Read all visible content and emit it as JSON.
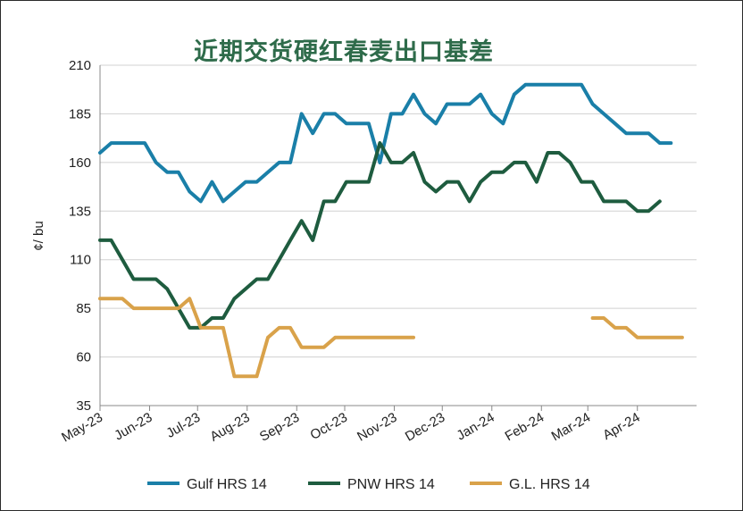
{
  "chart_data": {
    "type": "line",
    "title": "近期交货硬红春麦出口基差",
    "ylabel": "¢/ bu",
    "xlabel": "",
    "ylim": [
      35,
      210
    ],
    "yticks": [
      35,
      60,
      85,
      110,
      135,
      160,
      185,
      210
    ],
    "grid": true,
    "legend": "bottom",
    "month_labels": [
      "May-23",
      "Jun-23",
      "Jul-23",
      "Aug-23",
      "Sep-23",
      "Oct-23",
      "Nov-23",
      "Dec-23",
      "Jan-24",
      "Feb-24",
      "Mar-24",
      "Apr-24"
    ],
    "x_weeks": [
      "2023-05-01",
      "2023-05-08",
      "2023-05-15",
      "2023-05-22",
      "2023-05-29",
      "2023-06-05",
      "2023-06-12",
      "2023-06-19",
      "2023-06-26",
      "2023-07-03",
      "2023-07-10",
      "2023-07-17",
      "2023-07-24",
      "2023-07-31",
      "2023-08-07",
      "2023-08-14",
      "2023-08-21",
      "2023-08-28",
      "2023-09-04",
      "2023-09-11",
      "2023-09-18",
      "2023-09-25",
      "2023-10-02",
      "2023-10-09",
      "2023-10-16",
      "2023-10-23",
      "2023-10-30",
      "2023-11-06",
      "2023-11-13",
      "2023-11-20",
      "2023-11-27",
      "2023-12-04",
      "2023-12-11",
      "2023-12-18",
      "2023-12-25",
      "2024-01-01",
      "2024-01-08",
      "2024-01-15",
      "2024-01-22",
      "2024-01-29",
      "2024-02-05",
      "2024-02-12",
      "2024-02-19",
      "2024-02-26",
      "2024-03-04",
      "2024-03-11",
      "2024-03-18",
      "2024-03-25",
      "2024-04-01",
      "2024-04-08",
      "2024-04-15",
      "2024-04-22",
      "2024-04-29",
      "2024-05-06"
    ],
    "series": [
      {
        "name": "Gulf HRS 14",
        "color": "#1a7fa8",
        "values": [
          165,
          170,
          170,
          170,
          170,
          160,
          155,
          155,
          145,
          140,
          150,
          140,
          145,
          150,
          150,
          155,
          160,
          160,
          185,
          175,
          185,
          185,
          180,
          180,
          180,
          160,
          185,
          185,
          195,
          185,
          180,
          190,
          190,
          190,
          195,
          185,
          180,
          195,
          200,
          200,
          200,
          200,
          200,
          200,
          190,
          185,
          180,
          175,
          175,
          175,
          170,
          170,
          null,
          null
        ]
      },
      {
        "name": "PNW HRS 14",
        "color": "#1e5c3f",
        "values": [
          120,
          120,
          110,
          100,
          100,
          100,
          95,
          85,
          75,
          75,
          80,
          80,
          90,
          95,
          100,
          100,
          110,
          120,
          130,
          120,
          140,
          140,
          150,
          150,
          150,
          170,
          160,
          160,
          165,
          150,
          145,
          150,
          150,
          140,
          150,
          155,
          155,
          160,
          160,
          150,
          165,
          165,
          160,
          150,
          150,
          140,
          140,
          140,
          135,
          135,
          140,
          null,
          null,
          null
        ]
      },
      {
        "name": "G.L. HRS 14",
        "color": "#d9a24a",
        "values": [
          90,
          90,
          90,
          85,
          85,
          85,
          85,
          85,
          90,
          75,
          75,
          75,
          50,
          50,
          50,
          70,
          75,
          75,
          65,
          65,
          65,
          70,
          70,
          70,
          70,
          70,
          70,
          70,
          70,
          null,
          null,
          null,
          null,
          null,
          null,
          null,
          null,
          null,
          null,
          null,
          null,
          null,
          null,
          null,
          80,
          80,
          75,
          75,
          70,
          70,
          70,
          70,
          70,
          null
        ]
      }
    ]
  }
}
